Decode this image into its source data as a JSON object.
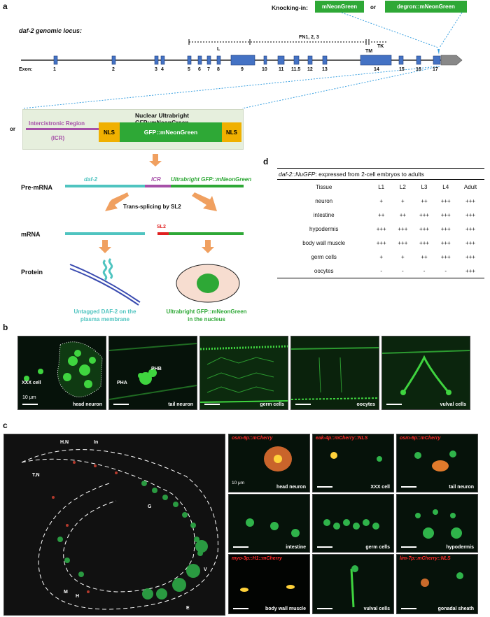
{
  "panel_a": {
    "letter": "a",
    "knocking_in_label": "Knocking-in:",
    "knock_option1": "mNeonGreen",
    "or_label": "or",
    "knock_option2": "degron::mNeonGreen",
    "locus_title": "daf-2 genomic locus:",
    "exon_label": "Exon:",
    "exons": [
      "1",
      "2",
      "3",
      "4",
      "5",
      "6",
      "7",
      "8",
      "9",
      "10",
      "11",
      "11.5",
      "12",
      "13",
      "14",
      "15",
      "16",
      "17"
    ],
    "domain_L": "L",
    "domain_FN": "FN1, 2, 3",
    "domain_TM": "TM",
    "domain_TK": "TK",
    "construct_title": "Nuclear Ultrabright GFP::mNeonGreen",
    "or_label2": "or",
    "icr_label": "Intercistronic Region",
    "icr_abbrev": "(ICR)",
    "nls1": "NLS",
    "gfp_label": "GFP::mNeonGreen",
    "nls2": "NLS",
    "premrna_label": "Pre-mRNA",
    "seg_daf2": "daf-2",
    "seg_icr": "ICR",
    "seg_gfp": "Ultrabright GFP::mNeonGreen",
    "trans_splicing": "Trans-splicing by SL2",
    "mrna_label": "mRNA",
    "sl2_label": "SL2",
    "protein_label": "Protein",
    "untagged_caption_1": "Untagged DAF-2 on the",
    "untagged_caption_2": "plasma membrane",
    "ultrabright_caption_1": "Ultrabright GFP::mNeonGreen",
    "ultrabright_caption_2": "in the nucleus"
  },
  "panel_d": {
    "letter": "d",
    "title_italic": "daf-2::NuGFP",
    "title_rest": ": expressed from 2-cell embryos to adults",
    "headers": [
      "Tissue",
      "L1",
      "L2",
      "L3",
      "L4",
      "Adult"
    ],
    "rows": [
      [
        "neuron",
        "+",
        "+",
        "++",
        "+++",
        "+++"
      ],
      [
        "intestine",
        "++",
        "++",
        "+++",
        "+++",
        "+++"
      ],
      [
        "hypodermis",
        "+++",
        "+++",
        "+++",
        "+++",
        "+++"
      ],
      [
        "body wall muscle",
        "+++",
        "+++",
        "+++",
        "+++",
        "+++"
      ],
      [
        "germ cells",
        "+",
        "+",
        "++",
        "+++",
        "+++"
      ],
      [
        "oocytes",
        "-",
        "-",
        "-",
        "-",
        "+++"
      ]
    ]
  },
  "panel_b": {
    "letter": "b",
    "scale": "10 μm",
    "tiles": [
      {
        "caption": "head neuron",
        "note": "XXX cell"
      },
      {
        "caption": "tail neuron",
        "note1": "PHB",
        "note2": "PHA"
      },
      {
        "caption": "germ cells"
      },
      {
        "caption": "oocytes"
      },
      {
        "caption": "vulval cells"
      }
    ]
  },
  "panel_c": {
    "letter": "c",
    "worm_labels": {
      "hn": "H.N",
      "in": "In",
      "tn": "T.N",
      "g": "G",
      "v": "V",
      "m": "M",
      "h": "H",
      "e": "E"
    },
    "scale": "10 μm",
    "tiles": [
      {
        "tag": "osm-6p::mCherry",
        "caption": "head neuron"
      },
      {
        "tag": "eak-4p::mCherry::NLS",
        "caption": "XXX cell"
      },
      {
        "tag": "osm-6p::mCherry",
        "caption": "tail neuron"
      },
      {
        "tag": "",
        "caption": "intestine"
      },
      {
        "tag": "",
        "caption": "germ cells"
      },
      {
        "tag": "",
        "caption": "hypodermis"
      },
      {
        "tag": "myo-3p::H1::mCherry",
        "caption": "body wall muscle"
      },
      {
        "tag": "",
        "caption": "vulval cells"
      },
      {
        "tag": "lim-7p::mCherry::NLS",
        "caption": "gonadal sheath"
      }
    ]
  },
  "colors": {
    "green": "#2ea836",
    "exon_blue": "#4472c4",
    "teal": "#4fc4c0",
    "icr_purple": "#a650a8",
    "nls_orange": "#f0b000",
    "sl2_red": "#e02020",
    "arrow_orange": "#f0a060"
  }
}
